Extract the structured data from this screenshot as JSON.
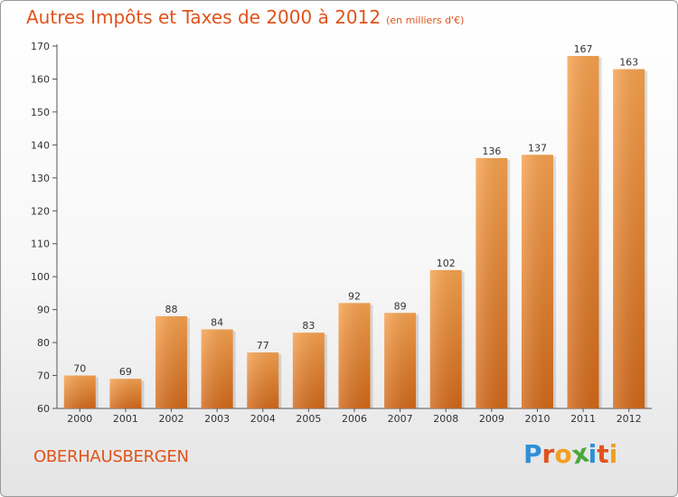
{
  "chart_data": {
    "type": "bar",
    "title": "Autres Impôts et Taxes de 2000 à 2012",
    "subtitle": "(en milliers d'€)",
    "categories": [
      "2000",
      "2001",
      "2002",
      "2003",
      "2004",
      "2005",
      "2006",
      "2007",
      "2008",
      "2009",
      "2010",
      "2011",
      "2012"
    ],
    "values": [
      70,
      69,
      88,
      84,
      77,
      83,
      92,
      89,
      102,
      136,
      137,
      167,
      163
    ],
    "ylim": [
      60,
      170
    ],
    "yticks": [
      60,
      70,
      80,
      90,
      100,
      110,
      120,
      130,
      140,
      150,
      160,
      170
    ],
    "xlabel": "",
    "ylabel": "",
    "grid": false,
    "bar_color": "#f08a2c"
  },
  "footer": {
    "commune": "OBERHAUSBERGEN",
    "logo_letters": [
      {
        "char": "P",
        "color": "#2f8fd6"
      },
      {
        "char": "r",
        "color": "#e0531c"
      },
      {
        "char": "o",
        "color": "#f0a020"
      },
      {
        "char": "x",
        "color": "#4aa83a"
      },
      {
        "char": "i",
        "color": "#2f8fd6"
      },
      {
        "char": "t",
        "color": "#e0531c"
      },
      {
        "char": "i",
        "color": "#f0a020"
      }
    ]
  }
}
